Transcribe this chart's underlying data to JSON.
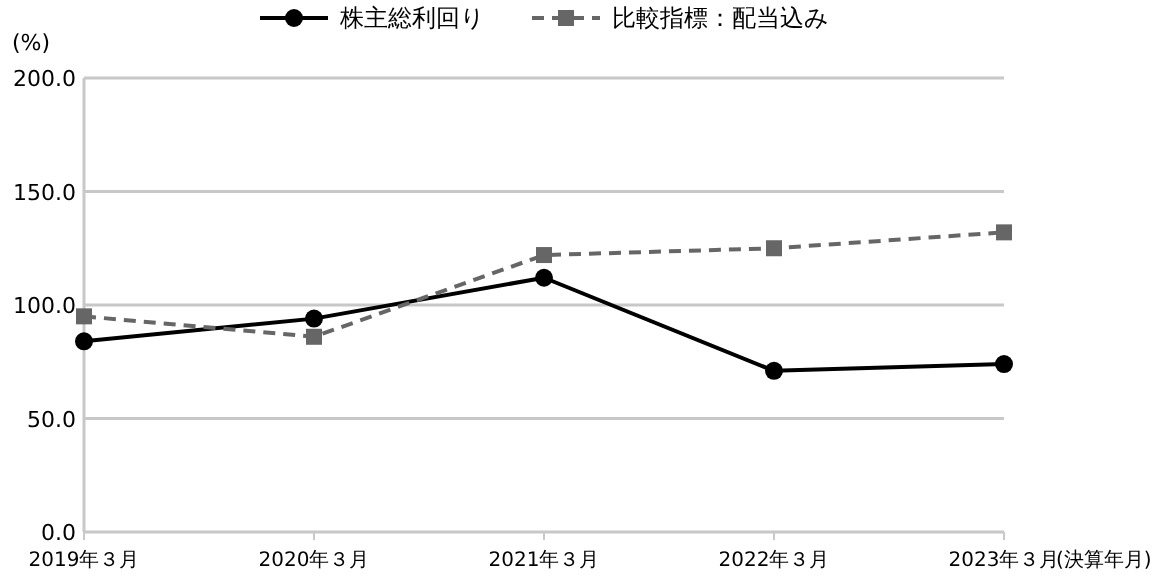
{
  "chart_data": {
    "type": "line",
    "ylabel": "(%)",
    "xlabel": "(決算年月)",
    "categories": [
      "2019年３月",
      "2020年３月",
      "2021年３月",
      "2022年３月",
      "2023年３月"
    ],
    "series": [
      {
        "name": "株主総利回り",
        "color": "#000000",
        "marker": "circle",
        "line_style": "solid",
        "values": [
          84,
          94,
          112,
          71,
          74
        ]
      },
      {
        "name": "比較指標：配当込み",
        "color": "#666666",
        "marker": "square",
        "line_style": "dashed",
        "values": [
          95,
          86,
          122,
          125,
          132
        ]
      }
    ],
    "ylim": [
      0,
      200
    ],
    "yticks": [
      {
        "value": 0,
        "label": "0.0"
      },
      {
        "value": 50,
        "label": "50.0"
      },
      {
        "value": 100,
        "label": "100.0"
      },
      {
        "value": 150,
        "label": "150.0"
      },
      {
        "value": 200,
        "label": "200.0"
      }
    ],
    "grid": "y",
    "legend": "top"
  }
}
